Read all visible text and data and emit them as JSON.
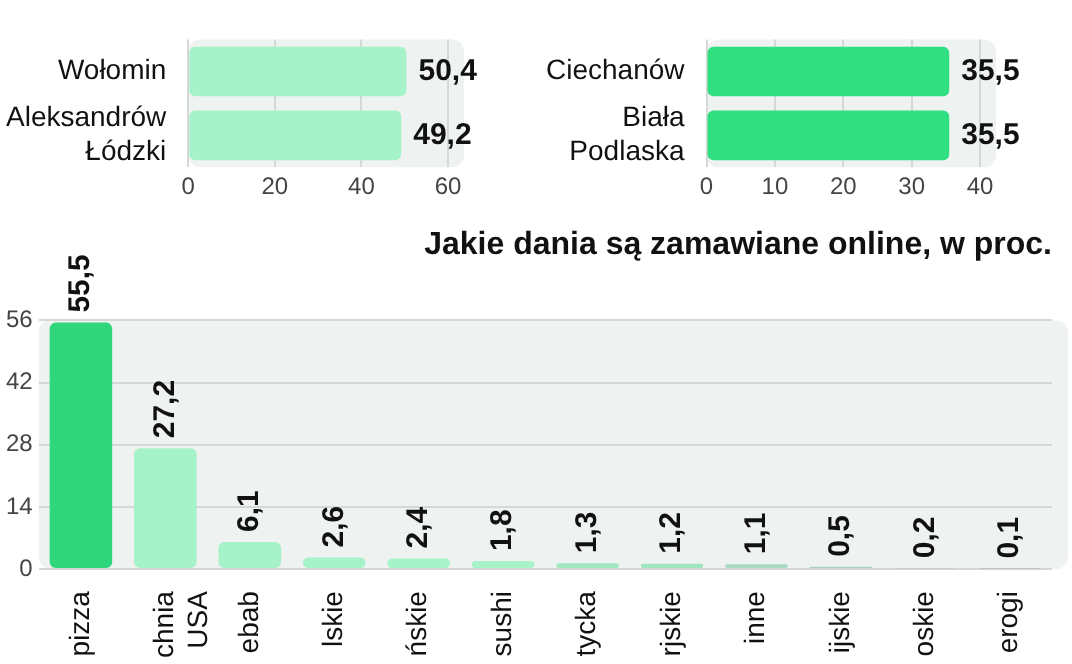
{
  "chart_data": [
    {
      "type": "bar",
      "orientation": "horizontal",
      "categories": [
        "Wołomin",
        "Aleksandrów Łódzki"
      ],
      "values": [
        50.4,
        49.2
      ],
      "colors": [
        "#a6f2c9",
        "#a6f2c9"
      ],
      "value_labels": [
        "50,4",
        "49,2"
      ],
      "xlim": [
        0,
        60
      ],
      "xticks": [
        0,
        20,
        40,
        60
      ],
      "grid": "x"
    },
    {
      "type": "bar",
      "orientation": "horizontal",
      "categories": [
        "Ciechanów",
        "Biała Podlaska"
      ],
      "values": [
        35.5,
        35.5
      ],
      "colors": [
        "#2fdf80",
        "#2fdf80"
      ],
      "value_labels": [
        "35,5",
        "35,5"
      ],
      "xlim": [
        0,
        40
      ],
      "xticks": [
        0,
        10,
        20,
        30,
        40
      ],
      "grid": "x"
    },
    {
      "type": "bar",
      "title": "Jakie dania są zamawiane online, w proc.",
      "categories": [
        "pizza",
        "chnia USA",
        "ebab",
        "lskie",
        "ńskie",
        "sushi",
        "tycka",
        "rjskie",
        "inne",
        "ijskie",
        "oskie",
        "erogi"
      ],
      "values": [
        55.5,
        27.2,
        6.1,
        2.6,
        2.4,
        1.8,
        1.3,
        1.2,
        1.1,
        0.5,
        0.2,
        0.1
      ],
      "colors": [
        "#2fd67c",
        "#a6f2c9",
        "#a6f2c9",
        "#a6f2c9",
        "#a6f2c9",
        "#a6f2c9",
        "#a0e6bf",
        "#a0e6bf",
        "#a8d9be",
        "#a8d4bd",
        "#a9b5af",
        "#a9b5af"
      ],
      "value_labels": [
        "55,5",
        "27,2",
        "6,1",
        "2,6",
        "2,4",
        "1,8",
        "1,3",
        "1,2",
        "1,1",
        "0,5",
        "0,2",
        "0,1"
      ],
      "ylim": [
        0,
        56
      ],
      "yticks": [
        0,
        14,
        28,
        42,
        56
      ],
      "grid": "y"
    }
  ]
}
